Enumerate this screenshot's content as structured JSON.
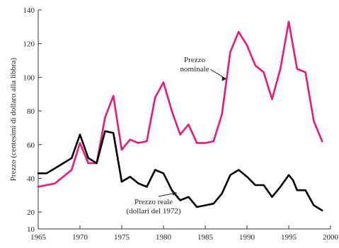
{
  "chart_data": {
    "type": "line",
    "title": "",
    "xlabel": "",
    "ylabel": "Prezzo (centesimi di dollaro alla libbra)",
    "xlim": [
      1965,
      2000
    ],
    "ylim": [
      10,
      140
    ],
    "xticks": [
      1965,
      1970,
      1975,
      1980,
      1985,
      1990,
      1995,
      2000
    ],
    "yticks": [
      10,
      20,
      40,
      60,
      80,
      100,
      120,
      140
    ],
    "grid": false,
    "legend": "none",
    "series": [
      {
        "name": "",
        "label_lines": [
          "Prezzo",
          "nominale"
        ],
        "color": "#e6197a",
        "x": [
          1965,
          1967,
          1968,
          1969,
          1970,
          1971,
          1972,
          1973,
          1974,
          1975,
          1976,
          1977,
          1978,
          1979,
          1980,
          1981,
          1982,
          1983,
          1984,
          1985,
          1986,
          1987,
          1988,
          1989,
          1990,
          1991,
          1992,
          1993,
          1994,
          1995,
          1996,
          1997,
          1998,
          1999
        ],
        "values": [
          35,
          37,
          41,
          45,
          61,
          49,
          49,
          76,
          89,
          57,
          63,
          61,
          62,
          88,
          97,
          80,
          66,
          72,
          61,
          61,
          62,
          78,
          115,
          127,
          119,
          107,
          103,
          87,
          105,
          133,
          105,
          103,
          74,
          62
        ]
      },
      {
        "name": "",
        "label_lines": [
          "Prezzo reale",
          "(dollari del 1972)"
        ],
        "color": "#000000",
        "x": [
          1965,
          1966,
          1967,
          1968,
          1969,
          1970,
          1971,
          1972,
          1973,
          1974,
          1975,
          1976,
          1977,
          1978,
          1979,
          1980,
          1981,
          1982,
          1983,
          1984,
          1985,
          1986,
          1987,
          1988,
          1989,
          1990,
          1991,
          1992,
          1993,
          1994,
          1995,
          1995.5,
          1996,
          1997,
          1998,
          1999
        ],
        "values": [
          43,
          43,
          46,
          49,
          52,
          66,
          52,
          49,
          68,
          67,
          38,
          41,
          37,
          35,
          45,
          43,
          33,
          27,
          29,
          23,
          24,
          25,
          31,
          42,
          45,
          41,
          36,
          36,
          29,
          35,
          42,
          39,
          33,
          33,
          24,
          21
        ]
      }
    ]
  }
}
